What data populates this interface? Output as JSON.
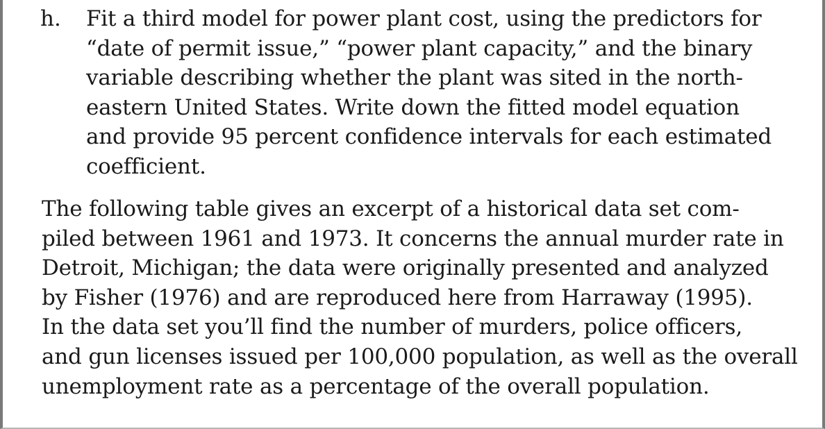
{
  "exercise": {
    "marker": "h.",
    "lines": [
      "Fit a third model for power plant cost, using the predictors for",
      "“date of permit issue,” “power plant capacity,” and the binary",
      "variable describing whether the plant was sited in the north-",
      "eastern United States. Write down the fitted model equation",
      "and provide 95 percent confidence intervals for each estimated",
      "coefficient."
    ]
  },
  "paragraph": {
    "lines": [
      "The following table gives an excerpt of a historical data set com-",
      "piled between 1961 and 1973. It concerns the annual murder rate in",
      "Detroit, Michigan; the data were originally presented and analyzed",
      "by Fisher (1976) and are reproduced here from Harraway (1995).",
      "In the data set you’ll find the number of murders, police officers,",
      "and gun licenses issued per 100,000 population, as well as the overall",
      "unemployment rate as a percentage of the overall population."
    ]
  }
}
